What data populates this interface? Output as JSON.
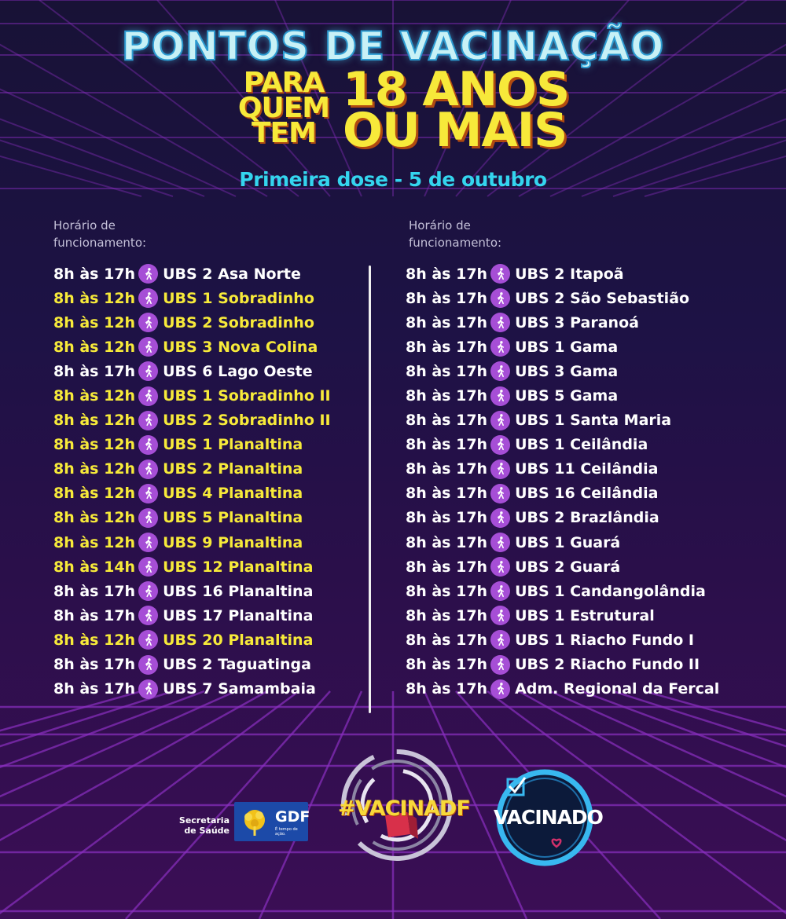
{
  "header": {
    "title": "PONTOS DE VACINAÇÃO",
    "para": [
      "PARA",
      "QUEM",
      "TEM"
    ],
    "anos": [
      "18 ANOS",
      "OU MAIS"
    ],
    "subtitle": "Primeira dose - 5 de outubro"
  },
  "colors": {
    "highlight": "#f7ea3a",
    "normal": "#ffffff",
    "icon_bg": "#a64ed6",
    "title_cyan": "#34d5ee"
  },
  "left": {
    "hours_label": [
      "Horário de",
      "funcionamento:"
    ],
    "rows": [
      {
        "time": "8h às 17h",
        "place": "UBS 2 Asa Norte",
        "highlight": false
      },
      {
        "time": "8h às 12h",
        "place": "UBS 1 Sobradinho",
        "highlight": true
      },
      {
        "time": "8h às 12h",
        "place": "UBS 2 Sobradinho",
        "highlight": true
      },
      {
        "time": "8h às 12h",
        "place": "UBS 3 Nova Colina",
        "highlight": true
      },
      {
        "time": "8h às 17h",
        "place": "UBS 6 Lago Oeste",
        "highlight": false
      },
      {
        "time": "8h às 12h",
        "place": "UBS 1 Sobradinho II",
        "highlight": true
      },
      {
        "time": "8h às 12h",
        "place": "UBS 2 Sobradinho II",
        "highlight": true
      },
      {
        "time": "8h às 12h",
        "place": "UBS 1 Planaltina",
        "highlight": true
      },
      {
        "time": "8h às 12h",
        "place": "UBS 2 Planaltina",
        "highlight": true
      },
      {
        "time": "8h às 12h",
        "place": "UBS 4 Planaltina",
        "highlight": true
      },
      {
        "time": "8h às 12h",
        "place": "UBS 5 Planaltina",
        "highlight": true
      },
      {
        "time": "8h às 12h",
        "place": "UBS 9 Planaltina",
        "highlight": true
      },
      {
        "time": "8h às 14h",
        "place": "UBS 12 Planaltina",
        "highlight": true
      },
      {
        "time": "8h às 17h",
        "place": "UBS 16 Planaltina",
        "highlight": false
      },
      {
        "time": "8h às 17h",
        "place": "UBS 17 Planaltina",
        "highlight": false
      },
      {
        "time": "8h às 12h",
        "place": "UBS 20 Planaltina",
        "highlight": true
      },
      {
        "time": "8h às 17h",
        "place": "UBS 2 Taguatinga",
        "highlight": false
      },
      {
        "time": "8h às 17h",
        "place": "UBS 7 Samambaia",
        "highlight": false
      }
    ]
  },
  "right": {
    "hours_label": [
      "Horário de",
      "funcionamento:"
    ],
    "rows": [
      {
        "time": "8h às 17h",
        "place": "UBS 2 Itapoã",
        "highlight": false
      },
      {
        "time": "8h às 17h",
        "place": "UBS 2 São Sebastião",
        "highlight": false
      },
      {
        "time": "8h às 17h",
        "place": "UBS 3 Paranoá",
        "highlight": false
      },
      {
        "time": "8h às 17h",
        "place": "UBS 1 Gama",
        "highlight": false
      },
      {
        "time": "8h às 17h",
        "place": "UBS 3 Gama",
        "highlight": false
      },
      {
        "time": "8h às 17h",
        "place": "UBS 5 Gama",
        "highlight": false
      },
      {
        "time": "8h às 17h",
        "place": "UBS 1 Santa Maria",
        "highlight": false
      },
      {
        "time": "8h às 17h",
        "place": "UBS 1 Ceilândia",
        "highlight": false
      },
      {
        "time": "8h às 17h",
        "place": "UBS 11 Ceilândia",
        "highlight": false
      },
      {
        "time": "8h às 17h",
        "place": "UBS 16 Ceilândia",
        "highlight": false
      },
      {
        "time": "8h às 17h",
        "place": "UBS 2 Brazlândia",
        "highlight": false
      },
      {
        "time": "8h às 17h",
        "place": "UBS 1 Guará",
        "highlight": false
      },
      {
        "time": "8h às 17h",
        "place": "UBS 2 Guará",
        "highlight": false
      },
      {
        "time": "8h às 17h",
        "place": "UBS 1 Candangolândia",
        "highlight": false
      },
      {
        "time": "8h às 17h",
        "place": "UBS 1 Estrutural",
        "highlight": false
      },
      {
        "time": "8h às 17h",
        "place": "UBS 1 Riacho Fundo I",
        "highlight": false
      },
      {
        "time": "8h às 17h",
        "place": "UBS 2 Riacho Fundo II",
        "highlight": false
      },
      {
        "time": "8h às 17h",
        "place": "Adm. Regional da Fercal",
        "highlight": false
      }
    ]
  },
  "footer": {
    "secretaria": [
      "Secretaria",
      "de Saúde"
    ],
    "gdf": "GDF",
    "gdf_sub": "É tempo de ação.",
    "vacinadf": "#VACINADF",
    "vacinado": "VACINADO"
  }
}
